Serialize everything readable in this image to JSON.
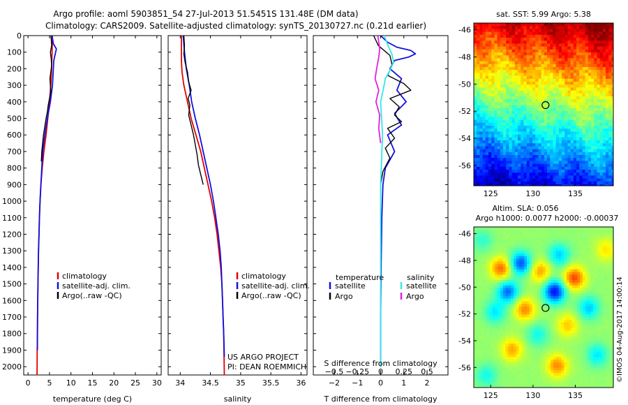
{
  "header": {
    "line1": "Argo profile: aoml 5903851_54 27-Jul-2013 51.5451S 131.48E (DM data)",
    "line2": "Climatology: CARS2009. Satellite-adjusted climatology: synTS_20130727.nc (0.21d earlier)"
  },
  "chart_data": [
    {
      "id": "temperature",
      "type": "line",
      "xlabel": "temperature (deg C)",
      "ylabel": "",
      "xlim": [
        -1,
        31
      ],
      "ylim": [
        2050,
        0
      ],
      "xticks": [
        0,
        5,
        10,
        15,
        20,
        25,
        30
      ],
      "xtick_labels": [
        "0",
        "5",
        "10",
        "15",
        "20",
        "25",
        "30"
      ],
      "yticks": [
        0,
        100,
        200,
        300,
        400,
        500,
        600,
        700,
        800,
        900,
        1000,
        1100,
        1200,
        1300,
        1400,
        1500,
        1600,
        1700,
        1800,
        1900,
        2000
      ],
      "ytick_labels": [
        "0",
        "100",
        "200",
        "300",
        "400",
        "500",
        "600",
        "700",
        "800",
        "900",
        "1000",
        "1100",
        "1200",
        "1300",
        "1400",
        "1500",
        "1600",
        "1700",
        "1800",
        "1900",
        "2000"
      ],
      "legend": [
        "climatology",
        "satellite-adj. clim.",
        "Argo(..raw -QC)"
      ],
      "legend_colors": [
        "#e00000",
        "#1010e0",
        "#000000"
      ],
      "series": [
        {
          "name": "climatology",
          "color": "#e00000",
          "x": [
            5.7,
            5.6,
            5.5,
            5.3,
            5.0,
            4.6,
            4.2,
            3.7,
            3.3,
            3.0,
            2.8,
            2.65,
            2.55,
            2.45,
            2.38,
            2.32,
            2.27,
            2.22,
            2.18,
            2.14,
            2.1
          ],
          "y": [
            0,
            100,
            200,
            300,
            400,
            500,
            600,
            700,
            800,
            900,
            1000,
            1100,
            1200,
            1300,
            1400,
            1500,
            1600,
            1700,
            1800,
            1900,
            2050
          ]
        },
        {
          "name": "satellite-adj. clim.",
          "color": "#1010e0",
          "x": [
            5.6,
            5.9,
            6.6,
            6.0,
            5.7,
            5.2,
            4.5,
            3.9,
            3.4,
            3.2,
            3.0,
            2.8,
            2.65,
            2.55,
            2.45,
            2.38,
            2.32,
            2.26,
            2.22,
            2.18
          ],
          "y": [
            0,
            50,
            80,
            150,
            300,
            400,
            500,
            600,
            700,
            800,
            900,
            1000,
            1100,
            1200,
            1300,
            1400,
            1500,
            1600,
            1700,
            1900
          ]
        },
        {
          "name": "Argo(..raw -QC)",
          "color": "#000000",
          "x": [
            5.3,
            5.4,
            5.5,
            5.2,
            5.4,
            5.5,
            5.3,
            5.1,
            5.2,
            5.3,
            5.0,
            4.7,
            4.5,
            4.2,
            3.9,
            3.6,
            3.4,
            3.2,
            3.1
          ],
          "y": [
            0,
            20,
            60,
            100,
            140,
            180,
            220,
            260,
            300,
            340,
            380,
            420,
            460,
            500,
            550,
            600,
            650,
            700,
            760
          ]
        }
      ]
    },
    {
      "id": "salinity",
      "type": "line",
      "xlabel": "salinity",
      "xlim": [
        33.8,
        36.1
      ],
      "ylim": [
        2050,
        0
      ],
      "xticks": [
        34,
        34.5,
        35,
        35.5,
        36
      ],
      "xtick_labels": [
        "34",
        "34.5",
        "35",
        "35.5",
        "36"
      ],
      "legend": [
        "climatology",
        "satellite-adj. clim.",
        "Argo(..raw -QC)"
      ],
      "legend_colors": [
        "#e00000",
        "#1010e0",
        "#000000"
      ],
      "annotation": [
        "US ARGO PROJECT",
        "PI: DEAN ROEMMICH"
      ],
      "series": [
        {
          "name": "climatology",
          "color": "#e00000",
          "x": [
            34.02,
            34.02,
            34.03,
            34.06,
            34.12,
            34.18,
            34.26,
            34.34,
            34.4,
            34.46,
            34.52,
            34.57,
            34.61,
            34.64,
            34.67,
            34.69,
            34.7,
            34.71,
            34.72,
            34.73
          ],
          "y": [
            0,
            150,
            220,
            300,
            400,
            500,
            600,
            700,
            800,
            900,
            1000,
            1100,
            1200,
            1300,
            1400,
            1500,
            1600,
            1700,
            1800,
            2050
          ]
        },
        {
          "name": "satellite-adj. clim.",
          "color": "#1010e0",
          "x": [
            34.05,
            34.07,
            34.1,
            34.15,
            34.19,
            34.25,
            34.32,
            34.38,
            34.44,
            34.5,
            34.55,
            34.59,
            34.63,
            34.66,
            34.68,
            34.69,
            34.7,
            34.71,
            34.72,
            34.73
          ],
          "y": [
            0,
            100,
            200,
            300,
            400,
            500,
            600,
            700,
            800,
            900,
            1000,
            1100,
            1200,
            1300,
            1400,
            1500,
            1600,
            1700,
            1800,
            1940
          ]
        },
        {
          "name": "Argo(..raw -QC)",
          "color": "#000000",
          "x": [
            34.06,
            34.07,
            34.06,
            34.08,
            34.12,
            34.14,
            34.18,
            34.13,
            34.16,
            34.14,
            34.18,
            34.22,
            34.25,
            34.28,
            34.3,
            34.34,
            34.38
          ],
          "y": [
            0,
            60,
            110,
            160,
            220,
            280,
            330,
            380,
            420,
            480,
            540,
            600,
            660,
            720,
            780,
            840,
            900
          ]
        }
      ]
    },
    {
      "id": "difference",
      "type": "line",
      "xlabel": "T difference from climatology",
      "xlabel2": "S difference from climatology",
      "xlim": [
        -2.9,
        2.9
      ],
      "ylim": [
        2050,
        0
      ],
      "xticks": [
        -2,
        -1,
        0,
        1,
        2
      ],
      "xtick_labels": [
        "−2",
        "−1",
        "0",
        "1",
        "2"
      ],
      "xticks2": [
        -0.5,
        -0.25,
        0,
        0.25,
        0.5
      ],
      "xtick2_labels": [
        "−0.5",
        "−0.25",
        "0",
        "0.25",
        "0.5"
      ],
      "legend_t_title": "temperature",
      "legend_s_title": "salinity",
      "legend_t": [
        "satellite",
        "Argo"
      ],
      "legend_s": [
        "satellite",
        "Argo"
      ],
      "legend_colors": [
        "#1010e0",
        "#000000",
        "#30e8e8",
        "#e020e0"
      ],
      "series": [
        {
          "name": "T satellite",
          "color": "#1010e0",
          "x": [
            0.0,
            0.3,
            0.7,
            1.3,
            1.5,
            1.2,
            0.6,
            0.4,
            0.9,
            0.7,
            1.1,
            0.6,
            0.9,
            0.3,
            0.6,
            0.2,
            0.1,
            0.05,
            0.02,
            0.0,
            0.0
          ],
          "y": [
            0,
            40,
            70,
            90,
            110,
            130,
            150,
            200,
            260,
            330,
            400,
            470,
            540,
            600,
            700,
            800,
            900,
            1100,
            1400,
            1700,
            2000
          ]
        },
        {
          "name": "T Argo",
          "color": "#000000",
          "x": [
            -0.3,
            -0.1,
            0.4,
            0.5,
            0.3,
            1.0,
            1.3,
            0.4,
            0.8,
            0.6,
            0.9,
            0.3,
            0.6,
            0.2,
            0.4,
            0.1,
            0.0
          ],
          "y": [
            0,
            60,
            120,
            180,
            240,
            290,
            330,
            380,
            430,
            480,
            520,
            560,
            620,
            680,
            740,
            820,
            900
          ]
        },
        {
          "name": "S satellite",
          "color": "#30e8e8",
          "x": [
            0.04,
            0.08,
            0.12,
            0.14,
            0.1,
            0.05,
            0.03,
            0.0,
            0.02,
            0.0,
            0.0,
            0.0
          ],
          "y": [
            0,
            60,
            110,
            160,
            210,
            260,
            320,
            400,
            600,
            900,
            1400,
            2000
          ]
        },
        {
          "name": "S Argo",
          "color": "#e020e0",
          "x": [
            -0.03,
            -0.01,
            -0.02,
            -0.04,
            -0.06,
            -0.02,
            -0.05,
            -0.01,
            -0.02,
            0.0
          ],
          "y": [
            0,
            80,
            130,
            190,
            260,
            330,
            400,
            480,
            560,
            650
          ]
        }
      ]
    },
    {
      "id": "sst-map",
      "type": "heatmap",
      "title": "sat. SST: 5.99 Argo: 5.38",
      "xlim": [
        123,
        139.5
      ],
      "ylim": [
        -57.5,
        -45.5
      ],
      "xticks": [
        125,
        130,
        135
      ],
      "xtick_labels": [
        "125",
        "130",
        "135"
      ],
      "yticks": [
        -46,
        -48,
        -50,
        -52,
        -54,
        -56
      ],
      "ytick_labels": [
        "-46",
        "-48",
        "-50",
        "-52",
        "-54",
        "-56"
      ],
      "marker": {
        "lon": 131.48,
        "lat": -51.55
      }
    },
    {
      "id": "sla-map",
      "type": "heatmap",
      "title": "Altim. SLA: 0.056",
      "subtitle": "Argo h1000: 0.0077 h2000: -0.00037",
      "xlim": [
        123,
        139.5
      ],
      "ylim": [
        -57.5,
        -45.5
      ],
      "xticks": [
        125,
        130,
        135
      ],
      "xtick_labels": [
        "125",
        "130",
        "135"
      ],
      "yticks": [
        -46,
        -48,
        -50,
        -52,
        -54,
        -56
      ],
      "ytick_labels": [
        "-46",
        "-48",
        "-50",
        "-52",
        "-54",
        "-56"
      ],
      "marker": {
        "lon": 131.48,
        "lat": -51.55
      },
      "blobs": [
        {
          "lon": 126.2,
          "lat": -48.6,
          "v": 0.8
        },
        {
          "lon": 128.5,
          "lat": -48.2,
          "v": -1.0
        },
        {
          "lon": 130.8,
          "lat": -48.8,
          "v": 0.6
        },
        {
          "lon": 133.0,
          "lat": -47.6,
          "v": -0.6
        },
        {
          "lon": 134.8,
          "lat": -49.3,
          "v": 0.9
        },
        {
          "lon": 132.5,
          "lat": -50.3,
          "v": -1.2
        },
        {
          "lon": 129.0,
          "lat": -51.6,
          "v": 0.7
        },
        {
          "lon": 125.5,
          "lat": -51.8,
          "v": -0.5
        },
        {
          "lon": 127.0,
          "lat": -50.3,
          "v": -0.9
        },
        {
          "lon": 136.5,
          "lat": -51.5,
          "v": -0.6
        },
        {
          "lon": 134.0,
          "lat": -52.8,
          "v": 0.5
        },
        {
          "lon": 130.5,
          "lat": -53.5,
          "v": -0.4
        },
        {
          "lon": 127.5,
          "lat": -54.6,
          "v": 0.6
        },
        {
          "lon": 132.8,
          "lat": -55.8,
          "v": 0.7
        },
        {
          "lon": 137.5,
          "lat": -55.0,
          "v": -0.5
        },
        {
          "lon": 124.5,
          "lat": -56.5,
          "v": -0.4
        },
        {
          "lon": 138.5,
          "lat": -47.2,
          "v": 0.4
        },
        {
          "lon": 124.0,
          "lat": -46.5,
          "v": -0.3
        }
      ]
    }
  ],
  "footer": {
    "copyright": "©IMOS 04-Aug-2017 14:00:14"
  }
}
